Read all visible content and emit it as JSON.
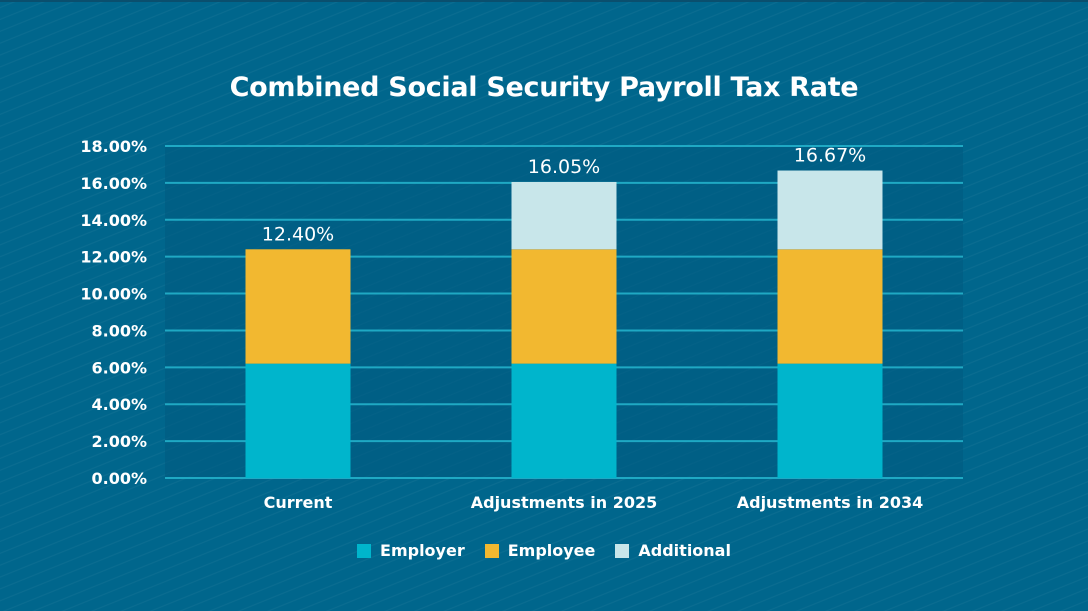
{
  "chart_data": {
    "type": "bar",
    "stacked": true,
    "title": "Combined Social Security Payroll Tax Rate",
    "xlabel": "",
    "ylabel": "",
    "ylim": [
      0,
      18
    ],
    "yticks": [
      "0.00%",
      "2.00%",
      "4.00%",
      "6.00%",
      "8.00%",
      "10.00%",
      "12.00%",
      "14.00%",
      "16.00%",
      "18.00%"
    ],
    "ytick_values": [
      0,
      2,
      4,
      6,
      8,
      10,
      12,
      14,
      16,
      18
    ],
    "grid": true,
    "legend_position": "bottom",
    "categories": [
      "Current",
      "Adjustments in 2025",
      "Adjustments in 2034"
    ],
    "series": [
      {
        "name": "Employer",
        "color": "#00b5cc",
        "values": [
          6.2,
          6.2,
          6.2
        ]
      },
      {
        "name": "Employee",
        "color": "#f2b830",
        "values": [
          6.2,
          6.2,
          6.2
        ]
      },
      {
        "name": "Additional",
        "color": "#c8e6ea",
        "values": [
          0,
          3.65,
          4.27
        ]
      }
    ],
    "totals": [
      12.4,
      16.05,
      16.67
    ],
    "total_labels": [
      "12.40%",
      "16.05%",
      "16.67%"
    ]
  }
}
